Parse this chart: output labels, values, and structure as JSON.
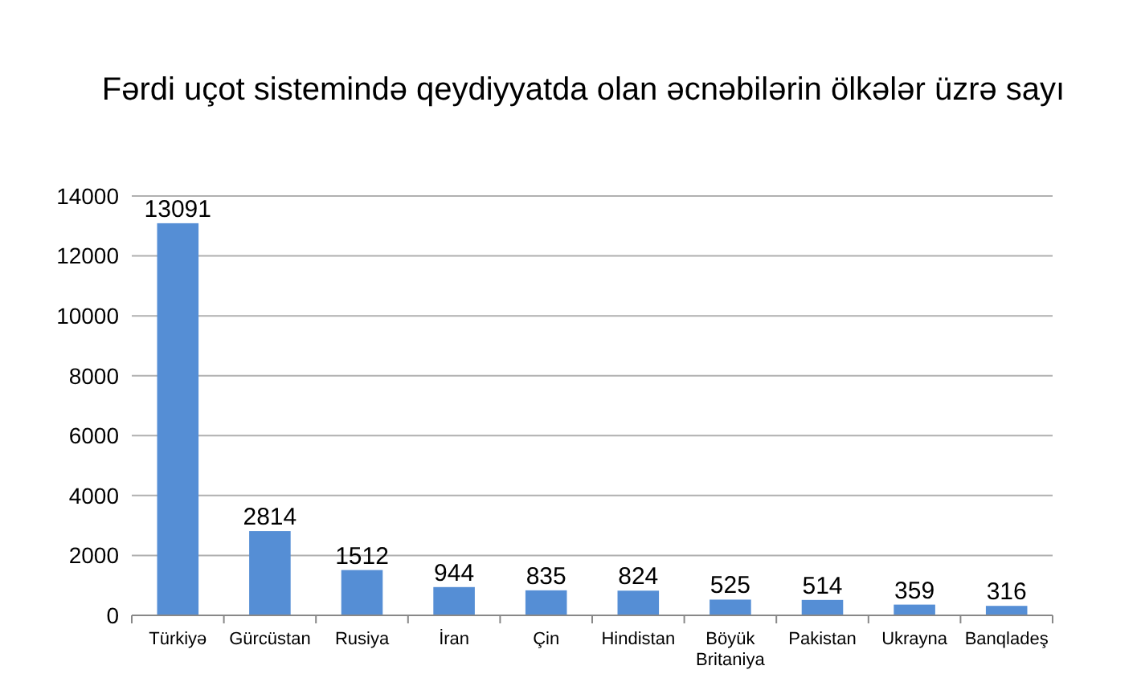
{
  "chart_data": {
    "type": "bar",
    "title": "Fərdi uçot sistemində qeydiyyatda olan əcnəbilərin ölkələr üzrə sayı",
    "categories": [
      "Türkiyə",
      "Gürcüstan",
      "Rusiya",
      "İran",
      "Çin",
      "Hindistan",
      "Böyük Britaniya",
      "Pakistan",
      "Ukrayna",
      "Banqladeş"
    ],
    "values": [
      13091,
      2814,
      1512,
      944,
      835,
      824,
      525,
      514,
      359,
      316
    ],
    "color": "#558ed5",
    "ylim": [
      0,
      14000
    ],
    "yticks": [
      0,
      2000,
      4000,
      6000,
      8000,
      10000,
      12000,
      14000
    ],
    "grid": true,
    "data_labels": true
  }
}
